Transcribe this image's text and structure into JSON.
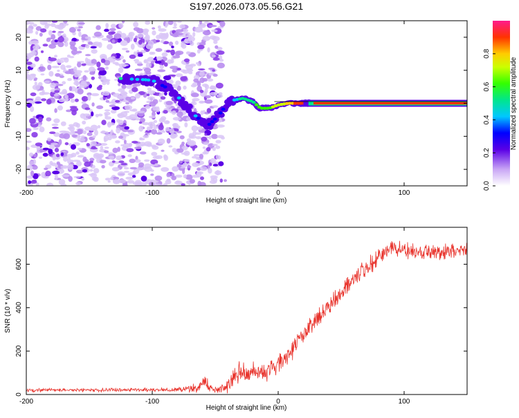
{
  "title": "S197.2026.073.05.56.G21",
  "chart_data": [
    {
      "type": "heatmap",
      "name": "spectrogram",
      "xlabel": "Height of straight line (km)",
      "ylabel": "Frequency (Hz)",
      "xlim": [
        -200,
        150
      ],
      "ylim": [
        -25,
        25
      ],
      "x_ticks": [
        -200,
        -100,
        0,
        100
      ],
      "y_ticks": [
        -20,
        -10,
        0,
        10,
        20
      ],
      "colorbar": {
        "label": "Normalized spectral amplitude",
        "range": [
          0,
          1
        ],
        "ticks": [
          "0.0",
          "0.2",
          "0.4",
          "0.6",
          "0.8"
        ],
        "tick_values": [
          0.0,
          0.2,
          0.4,
          0.6,
          0.8
        ]
      },
      "noise_region_x": [
        -200,
        -45
      ],
      "signal_track": [
        {
          "x": -125,
          "y": 7.5,
          "amp": 0.45
        },
        {
          "x": -100,
          "y": 7,
          "amp": 0.35
        },
        {
          "x": -90,
          "y": 5,
          "amp": 0.3
        },
        {
          "x": -82,
          "y": 3,
          "amp": 0.35
        },
        {
          "x": -75,
          "y": 0,
          "amp": 0.3
        },
        {
          "x": -68,
          "y": -3,
          "amp": 0.35
        },
        {
          "x": -62,
          "y": -5,
          "amp": 0.3
        },
        {
          "x": -55,
          "y": -6.5,
          "amp": 0.3
        },
        {
          "x": -48,
          "y": -4,
          "amp": 0.3
        },
        {
          "x": -42,
          "y": -1,
          "amp": 0.3
        },
        {
          "x": -35,
          "y": 1,
          "amp": 0.4
        },
        {
          "x": -28,
          "y": 1.5,
          "amp": 0.45
        },
        {
          "x": -20,
          "y": 0.5,
          "amp": 0.5
        },
        {
          "x": -14,
          "y": -1.5,
          "amp": 0.55
        },
        {
          "x": -7,
          "y": -1.5,
          "amp": 0.6
        },
        {
          "x": 0,
          "y": -0.5,
          "amp": 0.65
        },
        {
          "x": 8,
          "y": 0,
          "amp": 0.75
        },
        {
          "x": 18,
          "y": 0,
          "amp": 0.85
        },
        {
          "x": 30,
          "y": 0,
          "amp": 0.93
        },
        {
          "x": 60,
          "y": 0,
          "amp": 0.95
        },
        {
          "x": 100,
          "y": 0,
          "amp": 0.95
        },
        {
          "x": 150,
          "y": 0,
          "amp": 0.95
        }
      ]
    },
    {
      "type": "line",
      "name": "snr",
      "xlabel": "Height of straight line (km)",
      "ylabel": "SNR (10 * v/v)",
      "xlim": [
        -200,
        150
      ],
      "ylim": [
        0,
        770
      ],
      "x_ticks": [
        -200,
        -100,
        0,
        100
      ],
      "y_ticks": [
        0,
        200,
        400,
        600
      ],
      "color": "#e8322b",
      "envelope": [
        {
          "x": -200,
          "y": 20,
          "noise": 10
        },
        {
          "x": -80,
          "y": 22,
          "noise": 12
        },
        {
          "x": -65,
          "y": 30,
          "noise": 30
        },
        {
          "x": -58,
          "y": 60,
          "noise": 40
        },
        {
          "x": -52,
          "y": 20,
          "noise": 15
        },
        {
          "x": -40,
          "y": 40,
          "noise": 40
        },
        {
          "x": -30,
          "y": 110,
          "noise": 70
        },
        {
          "x": -20,
          "y": 100,
          "noise": 60
        },
        {
          "x": -10,
          "y": 100,
          "noise": 55
        },
        {
          "x": 0,
          "y": 140,
          "noise": 55
        },
        {
          "x": 10,
          "y": 200,
          "noise": 60
        },
        {
          "x": 20,
          "y": 280,
          "noise": 50
        },
        {
          "x": 40,
          "y": 410,
          "noise": 55
        },
        {
          "x": 60,
          "y": 530,
          "noise": 60
        },
        {
          "x": 75,
          "y": 610,
          "noise": 55
        },
        {
          "x": 90,
          "y": 680,
          "noise": 50
        },
        {
          "x": 105,
          "y": 660,
          "noise": 45
        },
        {
          "x": 125,
          "y": 650,
          "noise": 45
        },
        {
          "x": 150,
          "y": 670,
          "noise": 45
        }
      ]
    }
  ]
}
